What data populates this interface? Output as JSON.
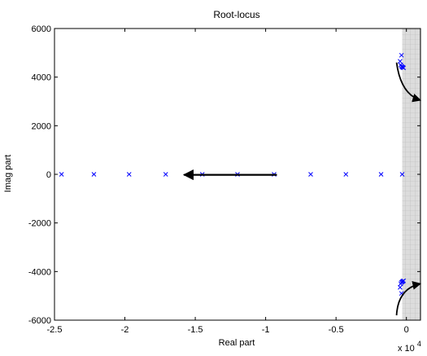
{
  "chart_data": {
    "type": "scatter",
    "title": "Root-locus",
    "xlabel": "Real part",
    "ylabel": "Imag part",
    "x_multiplier": "x 10",
    "x_multiplier_exp": "4",
    "xlim": [
      -2.5,
      0.1
    ],
    "ylim": [
      -6000,
      6000
    ],
    "x_ticks": [
      {
        "value": -2.5,
        "label": "-2.5"
      },
      {
        "value": -2.0,
        "label": "-2"
      },
      {
        "value": -1.5,
        "label": "-1.5"
      },
      {
        "value": -1.0,
        "label": "-1"
      },
      {
        "value": -0.5,
        "label": "-0.5"
      },
      {
        "value": 0.0,
        "label": "0"
      }
    ],
    "y_ticks": [
      {
        "value": 6000,
        "label": "6000"
      },
      {
        "value": 4000,
        "label": "4000"
      },
      {
        "value": 2000,
        "label": "2000"
      },
      {
        "value": 0,
        "label": "0"
      },
      {
        "value": -2000,
        "label": "-2000"
      },
      {
        "value": -4000,
        "label": "-4000"
      },
      {
        "value": -6000,
        "label": "-6000"
      }
    ],
    "grid": false,
    "shaded_region": {
      "x_from": -0.03,
      "x_to": 0.1,
      "color": "#c8c8c8"
    },
    "marker": "x",
    "marker_color": "#0000ff",
    "points": [
      {
        "x": -2.45,
        "y": 0
      },
      {
        "x": -2.22,
        "y": 0
      },
      {
        "x": -1.97,
        "y": 0
      },
      {
        "x": -1.71,
        "y": 0
      },
      {
        "x": -1.45,
        "y": 0
      },
      {
        "x": -1.2,
        "y": 0
      },
      {
        "x": -0.94,
        "y": 0
      },
      {
        "x": -0.68,
        "y": 0
      },
      {
        "x": -0.43,
        "y": 0
      },
      {
        "x": -0.18,
        "y": 0
      },
      {
        "x": -0.03,
        "y": 0
      },
      {
        "x": -0.035,
        "y": 4900
      },
      {
        "x": -0.045,
        "y": 4650
      },
      {
        "x": -0.04,
        "y": 4500
      },
      {
        "x": -0.035,
        "y": 4450
      },
      {
        "x": -0.03,
        "y": 4420
      },
      {
        "x": -0.025,
        "y": 4400
      },
      {
        "x": -0.02,
        "y": 4380
      },
      {
        "x": -0.035,
        "y": -4900
      },
      {
        "x": -0.045,
        "y": -4650
      },
      {
        "x": -0.04,
        "y": -4500
      },
      {
        "x": -0.035,
        "y": -4450
      },
      {
        "x": -0.03,
        "y": -4420
      },
      {
        "x": -0.025,
        "y": -4400
      },
      {
        "x": -0.02,
        "y": -4380
      }
    ],
    "arrows": [
      {
        "kind": "straight",
        "from": [
          -0.92,
          -20
        ],
        "to": [
          -1.58,
          -20
        ]
      },
      {
        "kind": "curved",
        "from": [
          -0.07,
          4600
        ],
        "ctrl": [
          -0.04,
          3300
        ],
        "to": [
          0.1,
          3050
        ]
      },
      {
        "kind": "curved",
        "from": [
          -0.07,
          -5800
        ],
        "ctrl": [
          -0.06,
          -4700
        ],
        "to": [
          0.1,
          -4500
        ]
      }
    ]
  }
}
